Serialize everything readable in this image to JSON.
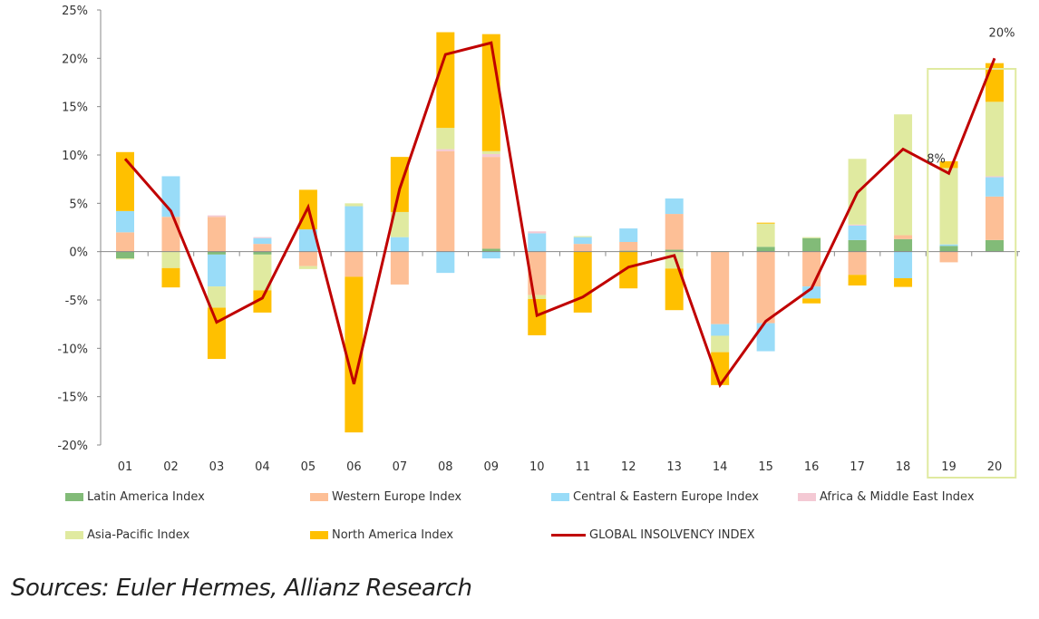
{
  "chart_data": {
    "type": "bar",
    "stacked": true,
    "title": "",
    "xlabel": "",
    "ylabel": "",
    "ylim": [
      -20,
      25
    ],
    "yticks": [
      "-20%",
      "-15%",
      "-10%",
      "-5%",
      "0%",
      "5%",
      "10%",
      "15%",
      "20%",
      "25%"
    ],
    "ytick_values": [
      -20,
      -15,
      -10,
      -5,
      0,
      5,
      10,
      15,
      20,
      25
    ],
    "categories": [
      "01",
      "02",
      "03",
      "04",
      "05",
      "06",
      "07",
      "08",
      "09",
      "10",
      "11",
      "12",
      "13",
      "14",
      "15",
      "16",
      "17",
      "18",
      "19",
      "20"
    ],
    "series": [
      {
        "name": "Latin America Index",
        "color": "#82bb78",
        "values": [
          -0.7,
          0,
          -0.3,
          -0.3,
          0,
          0,
          0,
          0,
          0.3,
          0,
          0,
          0.1,
          0.2,
          0.05,
          0.5,
          1.4,
          1.2,
          1.3,
          0.6,
          1.2
        ]
      },
      {
        "name": "Western Europe Index",
        "color": "#fdbf96",
        "values": [
          2.0,
          3.6,
          3.6,
          0.8,
          -1.5,
          -2.6,
          -3.4,
          10.4,
          9.5,
          -4.5,
          0.8,
          0.9,
          3.7,
          -7.5,
          -7.4,
          -3.6,
          -2.4,
          0.4,
          -1.1,
          4.5
        ]
      },
      {
        "name": "Central & Eastern Europe Index",
        "color": "#99dcf8",
        "values": [
          2.2,
          4.2,
          -3.3,
          0.6,
          2.3,
          4.7,
          1.5,
          -2.2,
          -0.7,
          1.9,
          0.7,
          1.4,
          1.6,
          -1.2,
          -2.9,
          -1.25,
          1.5,
          -2.75,
          0.15,
          2.0
        ]
      },
      {
        "name": "Africa & Middle East Index",
        "color": "#f4c9d4",
        "values": [
          0,
          0,
          0.15,
          0.1,
          0,
          0,
          0,
          0.2,
          0.3,
          0.2,
          0,
          0,
          0,
          0,
          0,
          0,
          0.1,
          0,
          0,
          0.1
        ]
      },
      {
        "name": "Asia-Pacific Index",
        "color": "#e0eaa0",
        "values": [
          -0.1,
          -1.7,
          -2.2,
          -3.7,
          -0.3,
          0.3,
          2.6,
          2.2,
          0.3,
          -0.4,
          0.1,
          0,
          -1.75,
          -1.7,
          2.4,
          0.1,
          6.8,
          12.5,
          7.9,
          7.7
        ]
      },
      {
        "name": "North America Index",
        "color": "#ffc000",
        "values": [
          6.1,
          -2.0,
          -5.3,
          -2.3,
          4.1,
          -16.1,
          5.7,
          9.9,
          12.1,
          -3.75,
          -6.3,
          -3.8,
          -4.3,
          -3.4,
          0.1,
          -0.5,
          -1.1,
          -0.9,
          0.7,
          4.0
        ]
      }
    ],
    "line": {
      "name": "GLOBAL INSOLVENCY INDEX",
      "color": "#c00000",
      "values": [
        9.6,
        4.2,
        -7.3,
        -4.8,
        4.6,
        -13.7,
        6.5,
        20.4,
        21.6,
        -6.6,
        -4.7,
        -1.6,
        -0.4,
        -13.8,
        -7.2,
        -3.8,
        6.1,
        10.6,
        8.1,
        20.0
      ]
    },
    "annotations": [
      {
        "category": "19",
        "text": "8%"
      },
      {
        "category": "20",
        "text": "20%"
      }
    ],
    "highlight": {
      "categories": [
        "19",
        "20"
      ],
      "color": "#e0eaa0"
    },
    "legend_position": "bottom",
    "grid": false
  },
  "source": "Sources: Euler Hermes, Allianz Research"
}
